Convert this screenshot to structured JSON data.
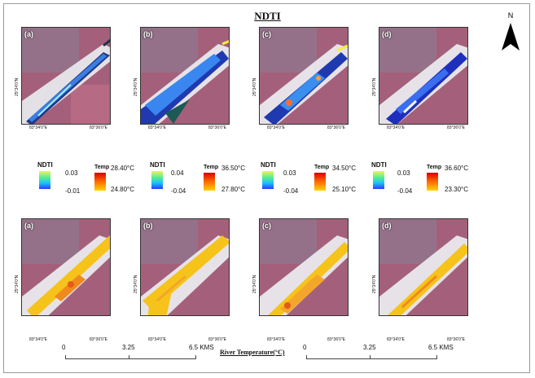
{
  "title": "NDTI",
  "north_label": "N",
  "coords": {
    "x_west": "83°34'0\"E",
    "x_east": "83°36'0\"E",
    "y": "25°34'0\"N"
  },
  "top_panels": [
    {
      "label": "(a)"
    },
    {
      "label": "(b)"
    },
    {
      "label": "(c)"
    },
    {
      "label": "(d)"
    }
  ],
  "bottom_panels": [
    {
      "label": "(a)"
    },
    {
      "label": "(b)"
    },
    {
      "label": "(c)"
    },
    {
      "label": "(d)"
    }
  ],
  "legends": [
    {
      "ndti_title": "NDTI",
      "ndti_high": "0.03",
      "ndti_low": "-0.01",
      "temp_title": "Temp",
      "temp_high": "28.40°C",
      "temp_low": "24.80°C"
    },
    {
      "ndti_title": "NDTI",
      "ndti_high": "0.04",
      "ndti_low": "-0.04",
      "temp_title": "Temp",
      "temp_high": "36.50°C",
      "temp_low": "27.80°C"
    },
    {
      "ndti_title": "NDTI",
      "ndti_high": "0.03",
      "ndti_low": "-0.04",
      "temp_title": "Temp",
      "temp_high": "34.50°C",
      "temp_low": "25.10°C"
    },
    {
      "ndti_title": "NDTI",
      "ndti_high": "0.03",
      "ndti_low": "-0.04",
      "temp_title": "Temp",
      "temp_high": "36.60°C",
      "temp_low": "23.30°C"
    }
  ],
  "scale_bar": {
    "t0": "0",
    "t1": "3.25",
    "t2": "6.5 KMS"
  },
  "river_temperature_label": "River Temperature(°C)",
  "colors": {
    "ndti_ramp": [
      "#2b3cff",
      "#19c3ff",
      "#5ef08a",
      "#f2f25a"
    ],
    "temp_ramp": [
      "#d90000",
      "#ff6a00",
      "#ffd200"
    ],
    "false_color_land": "#b6697c",
    "river_blue": "#2a4fd8",
    "river_temp": "#f6c31a"
  }
}
